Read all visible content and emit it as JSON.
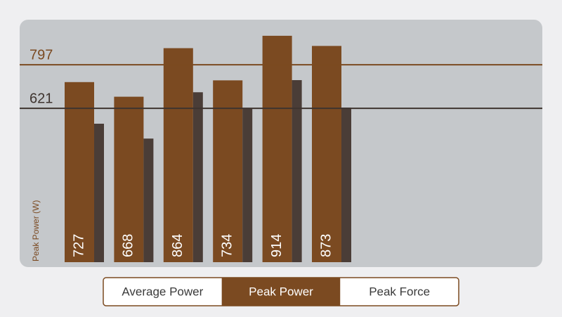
{
  "chart_data": {
    "type": "bar",
    "y_label": "Peak Power (W)",
    "categories": [
      null,
      null,
      null,
      null,
      null,
      null
    ],
    "series": [
      {
        "name": "Peak Power",
        "color": "#7b4a21",
        "values": [
          727,
          668,
          864,
          734,
          914,
          873
        ]
      },
      {
        "color": "#4a3d37",
        "values": [
          559,
          499,
          686,
          621,
          735,
          624
        ]
      }
    ],
    "ylim": [
      0,
      979
    ],
    "reference_lines": [
      {
        "value": 797,
        "color": "#7b4a21"
      },
      {
        "value": 621,
        "color": "#3e342f"
      }
    ],
    "background": "#c5c8cb"
  },
  "controls": {
    "segments": [
      "Average Power",
      "Peak Power",
      "Peak Force"
    ],
    "selected": 1,
    "color": "#7b4a21"
  }
}
